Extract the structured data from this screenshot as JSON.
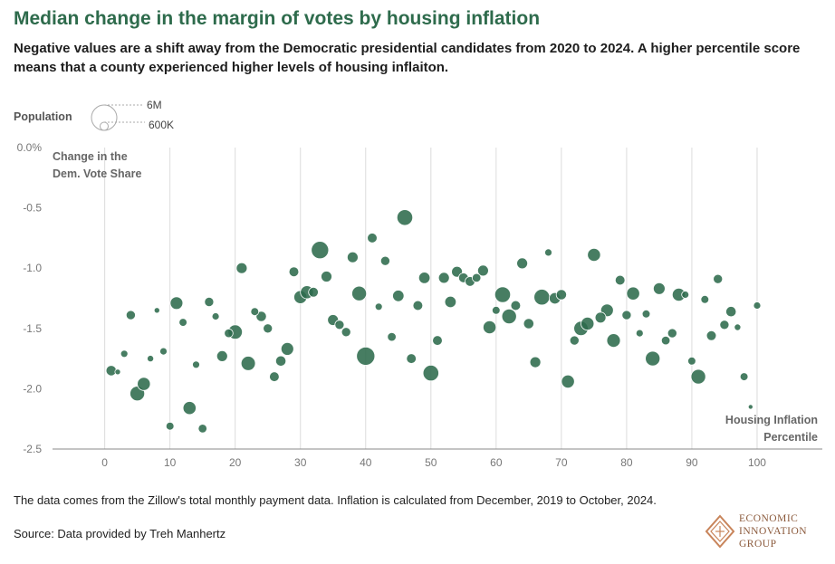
{
  "title": "Median change in the margin of votes by housing inflation",
  "subtitle": "Negative values are a shift away from the Democratic presidential candidates from 2020 to 2024. A higher percentile score means that a county experienced higher levels of housing inflaiton.",
  "legend": {
    "label": "Population",
    "large": "6M",
    "small": "600K"
  },
  "note": "The data comes from the Zillow's total monthly payment data. Inflation is calculated from December, 2019 to October, 2024.",
  "source": "Source: Data provided by Treh Manhertz",
  "logo": {
    "line1": "ECONOMIC",
    "line2": "INNOVATION",
    "line3": "GROUP"
  },
  "colors": {
    "title": "#2e6b4c",
    "bubble": "#2e6b4c",
    "grid": "#d9d9d9",
    "logo": "#c8845a"
  },
  "chart_data": {
    "type": "scatter",
    "title": "Median change in the margin of votes by housing inflation",
    "ylabel_lines": [
      "Change in the",
      "Dem. Vote Share"
    ],
    "xlabel_lines": [
      "Housing Inflation",
      "Percentile"
    ],
    "xlim": [
      -8,
      110
    ],
    "ylim": [
      -2.5,
      0.0
    ],
    "xticks": [
      0,
      10,
      20,
      30,
      40,
      50,
      60,
      70,
      80,
      90,
      100
    ],
    "yticks": [
      0.0,
      -0.5,
      -1.0,
      -1.5,
      -2.0,
      -2.5
    ],
    "ytick_labels": [
      "0.0%",
      "-0.5",
      "-1.0",
      "-1.5",
      "-2.0",
      "-2.5"
    ],
    "size_legend_millions": [
      6,
      0.6
    ],
    "points": [
      {
        "x": 1,
        "y": -1.85,
        "pop": 1.0
      },
      {
        "x": 2,
        "y": -1.86,
        "pop": 0.3
      },
      {
        "x": 3,
        "y": -1.71,
        "pop": 0.5
      },
      {
        "x": 4,
        "y": -1.39,
        "pop": 0.8
      },
      {
        "x": 5,
        "y": -2.04,
        "pop": 2.0
      },
      {
        "x": 6,
        "y": -1.96,
        "pop": 1.6
      },
      {
        "x": 7,
        "y": -1.75,
        "pop": 0.4
      },
      {
        "x": 8,
        "y": -1.35,
        "pop": 0.3
      },
      {
        "x": 9,
        "y": -1.69,
        "pop": 0.5
      },
      {
        "x": 10,
        "y": -2.31,
        "pop": 0.6
      },
      {
        "x": 11,
        "y": -1.29,
        "pop": 1.5
      },
      {
        "x": 12,
        "y": -1.45,
        "pop": 0.6
      },
      {
        "x": 13,
        "y": -2.16,
        "pop": 1.6
      },
      {
        "x": 14,
        "y": -1.8,
        "pop": 0.5
      },
      {
        "x": 15,
        "y": -2.33,
        "pop": 0.7
      },
      {
        "x": 16,
        "y": -1.28,
        "pop": 0.8
      },
      {
        "x": 17,
        "y": -1.4,
        "pop": 0.5
      },
      {
        "x": 18,
        "y": -1.73,
        "pop": 1.1
      },
      {
        "x": 19,
        "y": -1.54,
        "pop": 0.7
      },
      {
        "x": 20,
        "y": -1.53,
        "pop": 1.9
      },
      {
        "x": 21,
        "y": -1.0,
        "pop": 1.1
      },
      {
        "x": 22,
        "y": -1.79,
        "pop": 1.9
      },
      {
        "x": 23,
        "y": -1.36,
        "pop": 0.6
      },
      {
        "x": 24,
        "y": -1.4,
        "pop": 1.0
      },
      {
        "x": 25,
        "y": -1.5,
        "pop": 0.8
      },
      {
        "x": 26,
        "y": -1.9,
        "pop": 0.9
      },
      {
        "x": 27,
        "y": -1.77,
        "pop": 1.0
      },
      {
        "x": 28,
        "y": -1.67,
        "pop": 1.5
      },
      {
        "x": 29,
        "y": -1.03,
        "pop": 0.9
      },
      {
        "x": 30,
        "y": -1.24,
        "pop": 1.6
      },
      {
        "x": 31,
        "y": -1.2,
        "pop": 1.6
      },
      {
        "x": 32,
        "y": -1.2,
        "pop": 0.9
      },
      {
        "x": 33,
        "y": -0.85,
        "pop": 2.8
      },
      {
        "x": 34,
        "y": -1.07,
        "pop": 1.1
      },
      {
        "x": 35,
        "y": -1.43,
        "pop": 1.1
      },
      {
        "x": 36,
        "y": -1.47,
        "pop": 0.8
      },
      {
        "x": 37,
        "y": -1.53,
        "pop": 0.8
      },
      {
        "x": 38,
        "y": -0.91,
        "pop": 1.1
      },
      {
        "x": 39,
        "y": -1.21,
        "pop": 2.0
      },
      {
        "x": 40,
        "y": -1.73,
        "pop": 3.1
      },
      {
        "x": 41,
        "y": -0.75,
        "pop": 0.9
      },
      {
        "x": 42,
        "y": -1.32,
        "pop": 0.5
      },
      {
        "x": 43,
        "y": -0.94,
        "pop": 0.8
      },
      {
        "x": 44,
        "y": -1.57,
        "pop": 0.7
      },
      {
        "x": 45,
        "y": -1.23,
        "pop": 1.2
      },
      {
        "x": 46,
        "y": -0.58,
        "pop": 2.3
      },
      {
        "x": 47,
        "y": -1.75,
        "pop": 0.9
      },
      {
        "x": 48,
        "y": -1.31,
        "pop": 0.9
      },
      {
        "x": 49,
        "y": -1.08,
        "pop": 1.2
      },
      {
        "x": 50,
        "y": -1.87,
        "pop": 2.3
      },
      {
        "x": 51,
        "y": -1.6,
        "pop": 0.9
      },
      {
        "x": 52,
        "y": -1.08,
        "pop": 1.1
      },
      {
        "x": 53,
        "y": -1.28,
        "pop": 1.2
      },
      {
        "x": 54,
        "y": -1.03,
        "pop": 1.1
      },
      {
        "x": 55,
        "y": -1.08,
        "pop": 0.9
      },
      {
        "x": 56,
        "y": -1.11,
        "pop": 0.9
      },
      {
        "x": 57,
        "y": -1.08,
        "pop": 0.7
      },
      {
        "x": 58,
        "y": -1.02,
        "pop": 1.1
      },
      {
        "x": 59,
        "y": -1.49,
        "pop": 1.6
      },
      {
        "x": 60,
        "y": -1.35,
        "pop": 0.6
      },
      {
        "x": 61,
        "y": -1.22,
        "pop": 2.3
      },
      {
        "x": 62,
        "y": -1.4,
        "pop": 2.0
      },
      {
        "x": 63,
        "y": -1.31,
        "pop": 0.9
      },
      {
        "x": 64,
        "y": -0.96,
        "pop": 1.1
      },
      {
        "x": 65,
        "y": -1.46,
        "pop": 1.0
      },
      {
        "x": 66,
        "y": -1.78,
        "pop": 1.1
      },
      {
        "x": 67,
        "y": -1.24,
        "pop": 2.3
      },
      {
        "x": 68,
        "y": -0.87,
        "pop": 0.5
      },
      {
        "x": 69,
        "y": -1.25,
        "pop": 1.2
      },
      {
        "x": 70,
        "y": -1.22,
        "pop": 1.0
      },
      {
        "x": 71,
        "y": -1.94,
        "pop": 1.6
      },
      {
        "x": 72,
        "y": -1.6,
        "pop": 0.8
      },
      {
        "x": 73,
        "y": -1.5,
        "pop": 1.9
      },
      {
        "x": 74,
        "y": -1.46,
        "pop": 1.6
      },
      {
        "x": 75,
        "y": -0.89,
        "pop": 1.6
      },
      {
        "x": 76,
        "y": -1.41,
        "pop": 1.1
      },
      {
        "x": 77,
        "y": -1.35,
        "pop": 1.5
      },
      {
        "x": 78,
        "y": -1.6,
        "pop": 1.7
      },
      {
        "x": 79,
        "y": -1.1,
        "pop": 0.9
      },
      {
        "x": 80,
        "y": -1.39,
        "pop": 0.8
      },
      {
        "x": 81,
        "y": -1.21,
        "pop": 1.6
      },
      {
        "x": 82,
        "y": -1.54,
        "pop": 0.5
      },
      {
        "x": 83,
        "y": -1.38,
        "pop": 0.6
      },
      {
        "x": 84,
        "y": -1.75,
        "pop": 2.0
      },
      {
        "x": 85,
        "y": -1.17,
        "pop": 1.3
      },
      {
        "x": 86,
        "y": -1.6,
        "pop": 0.7
      },
      {
        "x": 87,
        "y": -1.54,
        "pop": 0.8
      },
      {
        "x": 88,
        "y": -1.22,
        "pop": 1.6
      },
      {
        "x": 89,
        "y": -1.22,
        "pop": 0.5
      },
      {
        "x": 90,
        "y": -1.77,
        "pop": 0.6
      },
      {
        "x": 91,
        "y": -1.9,
        "pop": 2.0
      },
      {
        "x": 92,
        "y": -1.26,
        "pop": 0.6
      },
      {
        "x": 93,
        "y": -1.56,
        "pop": 0.9
      },
      {
        "x": 94,
        "y": -1.09,
        "pop": 0.8
      },
      {
        "x": 95,
        "y": -1.47,
        "pop": 0.8
      },
      {
        "x": 96,
        "y": -1.36,
        "pop": 1.0
      },
      {
        "x": 97,
        "y": -1.49,
        "pop": 0.4
      },
      {
        "x": 98,
        "y": -1.9,
        "pop": 0.6
      },
      {
        "x": 99,
        "y": -2.15,
        "pop": 0.2
      },
      {
        "x": 100,
        "y": -1.31,
        "pop": 0.5
      }
    ]
  }
}
